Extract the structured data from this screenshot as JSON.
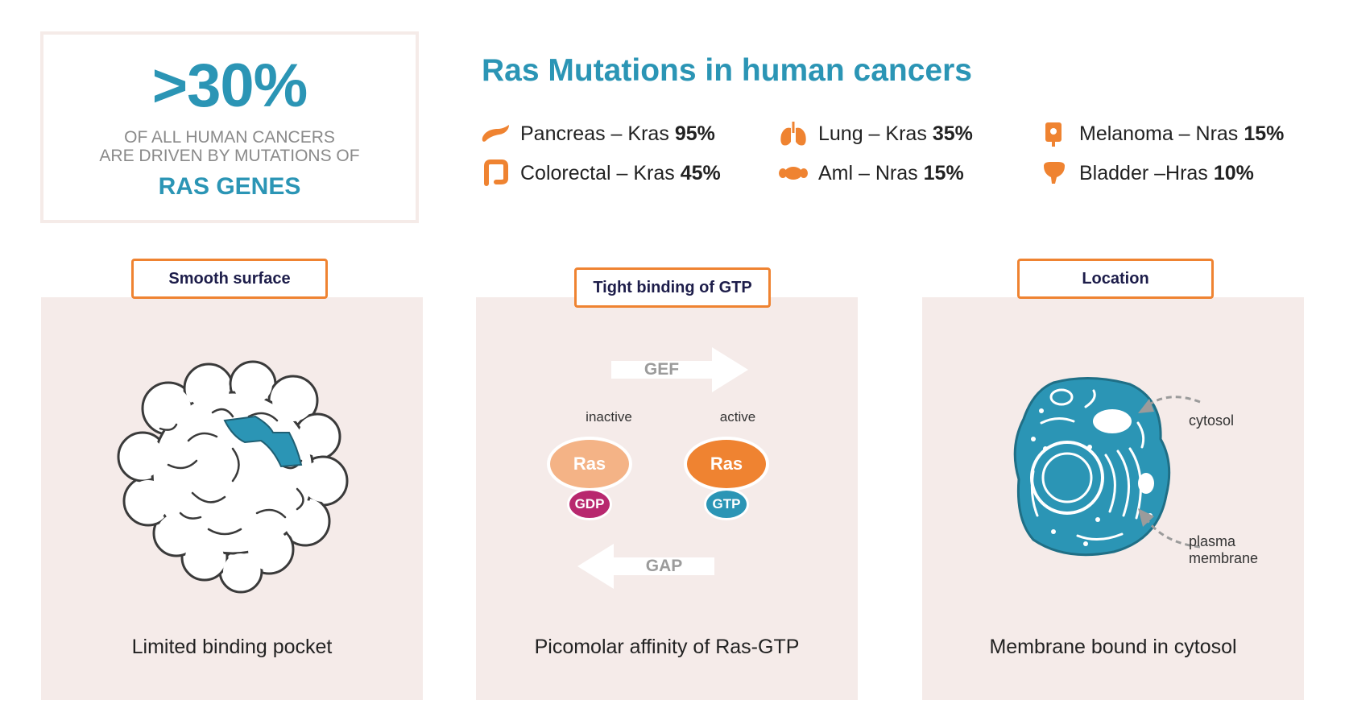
{
  "stat": {
    "big": ">30%",
    "line1": "OF ALL HUMAN CANCERS",
    "line2": "ARE DRIVEN BY MUTATIONS OF",
    "genes": "RAS GENES"
  },
  "title": "Ras Mutations in human cancers",
  "mutations": [
    {
      "label": "Pancreas – Kras",
      "pct": "95%",
      "icon": "pancreas-icon"
    },
    {
      "label": "Colorectal – Kras",
      "pct": "45%",
      "icon": "colon-icon"
    },
    {
      "label": "Lung – Kras",
      "pct": "35%",
      "icon": "lungs-icon"
    },
    {
      "label": "Aml – Nras",
      "pct": "15%",
      "icon": "blood-cell-icon"
    },
    {
      "label": "Melanoma – Nras",
      "pct": "15%",
      "icon": "skin-icon"
    },
    {
      "label": "Bladder –Hras",
      "pct": "10%",
      "icon": "bladder-icon"
    }
  ],
  "panels": [
    {
      "tag": "Smooth surface",
      "caption": "Limited binding pocket"
    },
    {
      "tag": "Tight binding of GTP",
      "caption": "Picomolar affinity of Ras-GTP",
      "gef": "GEF",
      "gap": "GAP",
      "inactive": "inactive",
      "active": "active",
      "ras": "Ras",
      "gdp": "GDP",
      "gtp": "GTP"
    },
    {
      "tag": "Location",
      "caption": "Membrane bound in cytosol",
      "cytosol": "cytosol",
      "plasma": "plasma",
      "membrane": "membrane"
    }
  ],
  "colors": {
    "teal": "#2b95b5",
    "orange": "#ef8331",
    "light_orange": "#f4b386",
    "magenta": "#b8286e",
    "panel_bg": "#f5ebe9",
    "protein_pocket": "#2b95b5"
  }
}
